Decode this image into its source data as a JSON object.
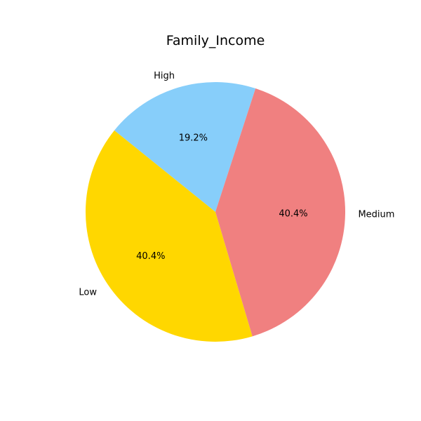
{
  "chart_data": {
    "type": "pie",
    "title": "Family_Income",
    "slices": [
      {
        "label": "High",
        "value": 19.2,
        "pct_label": "19.2%",
        "color": "#87CEFA"
      },
      {
        "label": "Low",
        "value": 40.4,
        "pct_label": "40.4%",
        "color": "#FFD700"
      },
      {
        "label": "Medium",
        "value": 40.4,
        "pct_label": "40.4%",
        "color": "#F08080"
      }
    ],
    "start_angle_deg": 72,
    "direction": "counterclockwise",
    "legend": "none"
  }
}
